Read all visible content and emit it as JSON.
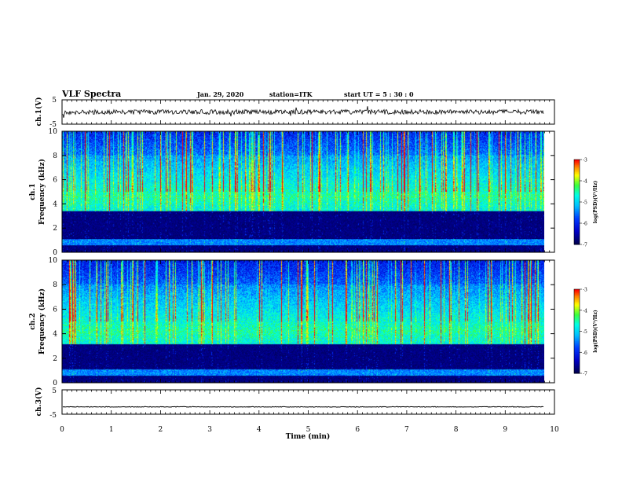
{
  "header": {
    "title": "VLF Spectra",
    "date": "Jan. 29, 2020",
    "station": "station=ITK",
    "start": "start UT =  5 : 30 : 0"
  },
  "chart_data": [
    {
      "type": "line",
      "panel": "ch1-waveform",
      "ylabel": "ch.1(V)",
      "ylim": [
        -5,
        5
      ],
      "yticks": [
        "5",
        "-5"
      ],
      "xlim": [
        0,
        10
      ],
      "level": 0,
      "notes": "noisy waveform centred at 0 V with sporadic spikes"
    },
    {
      "type": "heatmap",
      "panel": "ch1-spectrogram",
      "ylabel": "ch.1\nFrequency (kHz)",
      "ylim": [
        0,
        10
      ],
      "yticks": [
        "0",
        "2",
        "4",
        "6",
        "8",
        "10"
      ],
      "xlim": [
        0,
        9.8
      ],
      "band_kHz": [
        3.4,
        10
      ],
      "colorbar": {
        "label": "log(PSD)(V²/Hz)",
        "range": [
          -7,
          -3
        ],
        "ticks": [
          "-3",
          "-4",
          "-5",
          "-6",
          "-7"
        ]
      }
    },
    {
      "type": "heatmap",
      "panel": "ch2-spectrogram",
      "ylabel": "ch.2\nFrequency (kHz)",
      "ylim": [
        0,
        10
      ],
      "yticks": [
        "0",
        "2",
        "4",
        "6",
        "8",
        "10"
      ],
      "xlim": [
        0,
        9.8
      ],
      "band_kHz": [
        3.1,
        10
      ],
      "colorbar": {
        "label": "log(PSD)(V²/Hz)",
        "range": [
          -7,
          -3
        ],
        "ticks": [
          "-3",
          "-4",
          "-5",
          "-6",
          "-7"
        ]
      }
    },
    {
      "type": "line",
      "panel": "ch3-waveform",
      "ylabel": "ch.3(V)",
      "ylim": [
        -5,
        5
      ],
      "yticks": [
        "5",
        "-5"
      ],
      "xlim": [
        0,
        10
      ],
      "level": -2,
      "notes": "flat trace near -2 V"
    }
  ],
  "xaxis": {
    "label": "Time  (min)",
    "ticks": [
      "0",
      "1",
      "2",
      "3",
      "4",
      "5",
      "6",
      "7",
      "8",
      "9",
      "10"
    ]
  },
  "colors": {
    "colormap": [
      "#00008b",
      "#0000ff",
      "#0080ff",
      "#00ffff",
      "#00ff00",
      "#ffff00",
      "#ff8000",
      "#ff0000",
      "#ffffff"
    ]
  }
}
